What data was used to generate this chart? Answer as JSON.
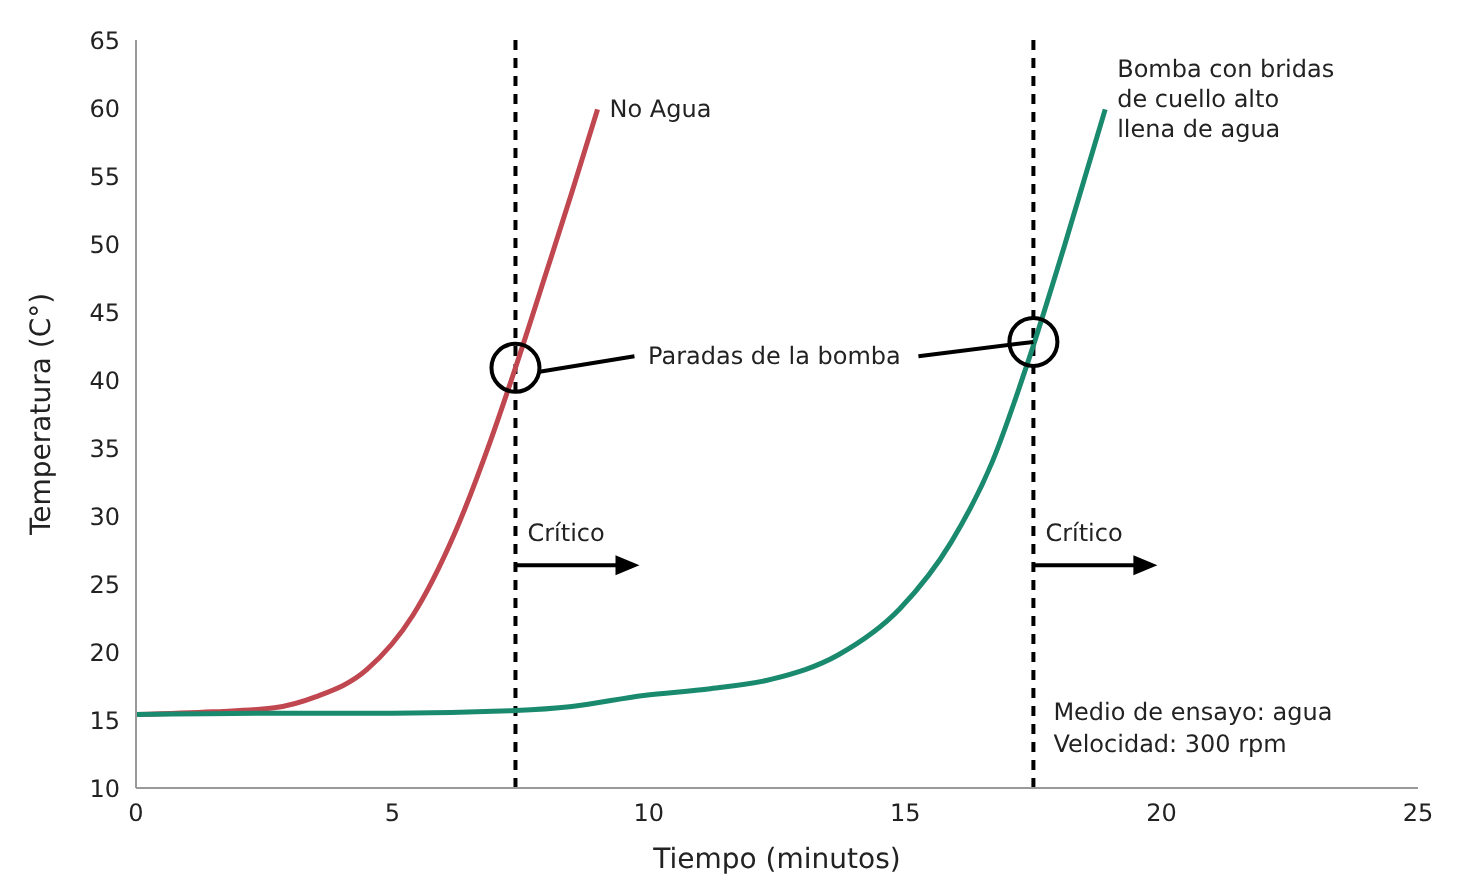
{
  "chart_data": {
    "type": "line",
    "xlabel": "Tiempo (minutos)",
    "ylabel": "Temperatura (C°)",
    "xlim": [
      0,
      25
    ],
    "xticks": [
      0,
      5,
      10,
      15,
      20,
      25
    ],
    "ylim": [
      10,
      65
    ],
    "yticks": [
      10,
      15,
      20,
      25,
      30,
      35,
      40,
      45,
      50,
      55,
      60,
      65
    ],
    "grid": false,
    "legend": false,
    "marker": "none",
    "line_style": "solid",
    "series": [
      {
        "name": "No Agua",
        "color": "#c0474f",
        "x": [
          0,
          1.5,
          2.7,
          3.5,
          4.5,
          5.4,
          6.2,
          6.9,
          7.4,
          8.0,
          8.5,
          9.0
        ],
        "values": [
          15.4,
          15.6,
          15.9,
          16.7,
          18.7,
          22.7,
          28.6,
          35.4,
          40.9,
          47.9,
          53.8,
          59.9
        ]
      },
      {
        "name": "Bomba con bridas de cuello alto llena de agua",
        "color": "#1a8a6e",
        "x": [
          0,
          2.5,
          5,
          7.4,
          8.5,
          9.9,
          11.2,
          12.4,
          13.7,
          14.9,
          15.9,
          16.7,
          17.4,
          18.1,
          18.9
        ],
        "values": [
          15.4,
          15.5,
          15.5,
          15.7,
          16.0,
          16.8,
          17.3,
          18.0,
          19.8,
          23.2,
          28.1,
          34.0,
          41.4,
          49.8,
          59.9
        ]
      }
    ],
    "ref_lines": [
      {
        "axis": "x",
        "value": 7.4,
        "color": "#000000",
        "line_style": "dashed"
      },
      {
        "axis": "x",
        "value": 17.5,
        "color": "#000000",
        "line_style": "dashed"
      }
    ],
    "annotations": [
      {
        "text": "Paradas de la bomba",
        "x": 17.5,
        "y": 42.8
      },
      "Crítico",
      "Crítico",
      "Medio de ensayo: agua",
      "Velocidad: 300 rpm"
    ]
  }
}
